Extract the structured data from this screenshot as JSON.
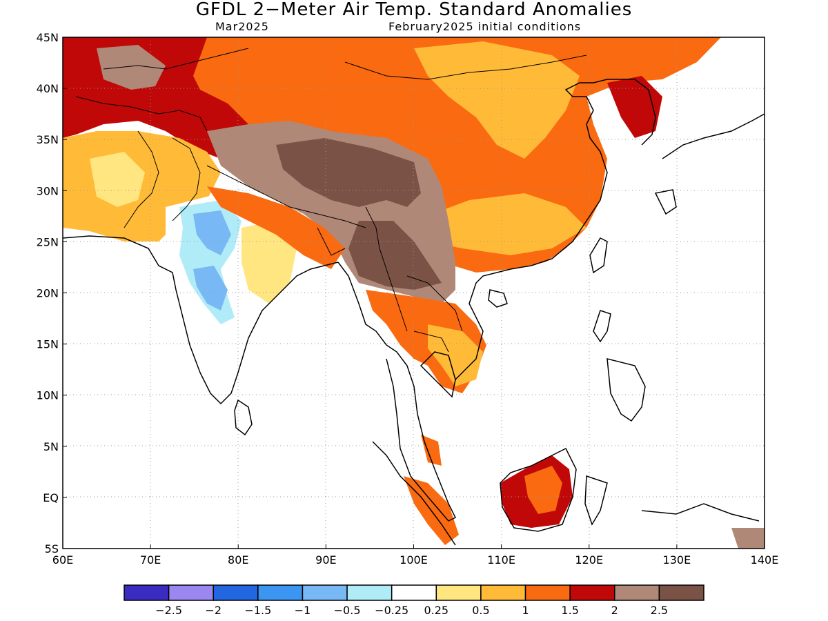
{
  "header": {
    "title": "GFDL 2−Meter Air Temp. Standard Anomalies",
    "valid_month": "Mar2025",
    "init_conditions": "February2025 initial conditions"
  },
  "map": {
    "lon_range": [
      60,
      140
    ],
    "lat_range": [
      -5,
      45
    ],
    "grid": "dotted",
    "lon_ticks": [
      "60E",
      "70E",
      "80E",
      "90E",
      "100E",
      "110E",
      "120E",
      "130E",
      "140E"
    ],
    "lat_ticks": [
      "45N",
      "40N",
      "35N",
      "30N",
      "25N",
      "20N",
      "15N",
      "10N",
      "5N",
      "EQ",
      "5S"
    ]
  },
  "colorbar": {
    "colors": [
      "#3a2cc0",
      "#9a88f0",
      "#2266e0",
      "#3d95f2",
      "#78b8f5",
      "#b0ecf8",
      "#ffffff",
      "#ffe680",
      "#ffbb38",
      "#fa6a10",
      "#c00808",
      "#b08878",
      "#7a5246"
    ],
    "labels": [
      "−2.5",
      "−2",
      "−1.5",
      "−1",
      "−0.5",
      "−0.25",
      "0.25",
      "0.5",
      "1",
      "1.5",
      "2",
      "2.5"
    ]
  }
}
